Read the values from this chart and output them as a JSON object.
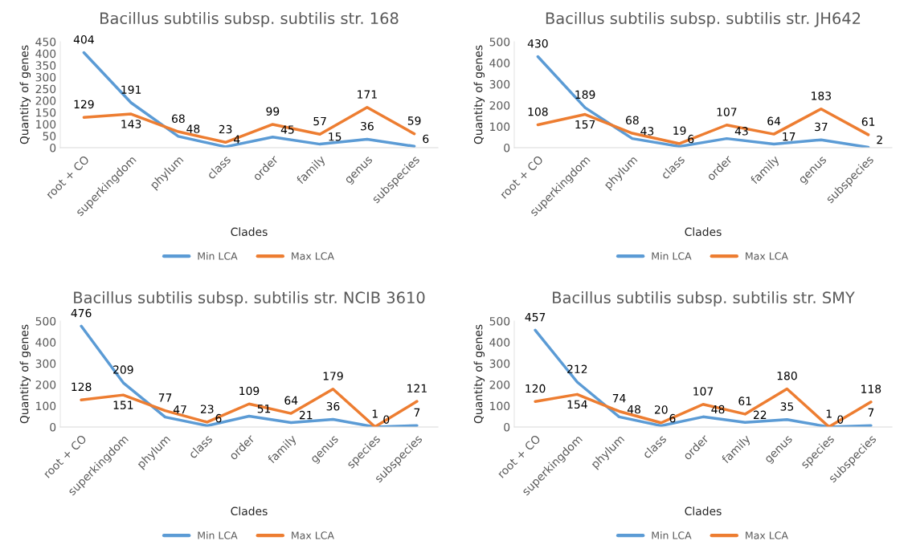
{
  "chart_data": [
    {
      "type": "line",
      "title": "Bacillus subtilis subsp. subtilis str. 168",
      "xlabel": "Clades",
      "ylabel": "Quantity of genes",
      "categories": [
        "root + CO",
        "superkingdom",
        "phylum",
        "class",
        "order",
        "family",
        "genus",
        "subspecies"
      ],
      "series": [
        {
          "name": "Min LCA",
          "color": "#5b9bd5",
          "values": [
            404,
            191,
            48,
            4,
            45,
            15,
            36,
            6
          ]
        },
        {
          "name": "Max LCA",
          "color": "#ed7d31",
          "values": [
            129,
            143,
            68,
            23,
            99,
            57,
            171,
            59
          ]
        }
      ],
      "ylim": [
        0,
        450
      ],
      "yticks": [
        0,
        50,
        100,
        150,
        200,
        250,
        300,
        350,
        400,
        450
      ],
      "data_labels": true,
      "legend": "bottom"
    },
    {
      "type": "line",
      "title": "Bacillus subtilis subsp. subtilis str. JH642",
      "xlabel": "Clades",
      "ylabel": "Quantity of genes",
      "categories": [
        "root + CO",
        "superkingdom",
        "phylum",
        "class",
        "order",
        "family",
        "genus",
        "subspecies"
      ],
      "series": [
        {
          "name": "Min LCA",
          "color": "#5b9bd5",
          "values": [
            430,
            189,
            43,
            6,
            43,
            17,
            37,
            2
          ]
        },
        {
          "name": "Max LCA",
          "color": "#ed7d31",
          "values": [
            108,
            157,
            68,
            19,
            107,
            64,
            183,
            61
          ]
        }
      ],
      "ylim": [
        0,
        500
      ],
      "yticks": [
        0,
        100,
        200,
        300,
        400,
        500
      ],
      "data_labels": true,
      "legend": "bottom"
    },
    {
      "type": "line",
      "title": "Bacillus subtilis subsp. subtilis str. NCIB 3610",
      "xlabel": "Clades",
      "ylabel": "Quantity of genes",
      "categories": [
        "root + CO",
        "superkingdom",
        "phylum",
        "class",
        "order",
        "family",
        "genus",
        "species",
        "subspecies"
      ],
      "series": [
        {
          "name": "Min LCA",
          "color": "#5b9bd5",
          "values": [
            476,
            209,
            47,
            6,
            51,
            21,
            36,
            0,
            7
          ]
        },
        {
          "name": "Max LCA",
          "color": "#ed7d31",
          "values": [
            128,
            151,
            77,
            23,
            109,
            64,
            179,
            1,
            121
          ]
        }
      ],
      "ylim": [
        0,
        500
      ],
      "yticks": [
        0,
        100,
        200,
        300,
        400,
        500
      ],
      "data_labels": true,
      "legend": "bottom"
    },
    {
      "type": "line",
      "title": "Bacillus subtilis subsp. subtilis str. SMY",
      "xlabel": "Clades",
      "ylabel": "Quantity of genes",
      "categories": [
        "root + CO",
        "superkingdom",
        "phylum",
        "class",
        "order",
        "family",
        "genus",
        "species",
        "subspecies"
      ],
      "series": [
        {
          "name": "Min LCA",
          "color": "#5b9bd5",
          "values": [
            457,
            212,
            48,
            6,
            48,
            22,
            35,
            0,
            7
          ]
        },
        {
          "name": "Max LCA",
          "color": "#ed7d31",
          "values": [
            120,
            154,
            74,
            20,
            107,
            61,
            180,
            1,
            118
          ]
        }
      ],
      "ylim": [
        0,
        500
      ],
      "yticks": [
        0,
        100,
        200,
        300,
        400,
        500
      ],
      "data_labels": true,
      "legend": "bottom"
    }
  ]
}
